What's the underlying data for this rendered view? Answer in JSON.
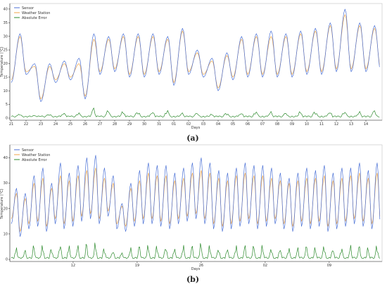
{
  "figure": {
    "caption_a": "(a)",
    "caption_b": "(b)"
  },
  "colors": {
    "sensor": "#4c72d6",
    "weather_station": "#f0a64a",
    "absolute_error": "#2e8b2e",
    "frame": "#bfbfbf"
  },
  "chart_data": [
    {
      "type": "line",
      "caption": "(a)",
      "xlabel": "Days",
      "ylabel": "Temperature (°C)",
      "ylim": [
        0,
        41
      ],
      "yticks": [
        0,
        5,
        10,
        15,
        20,
        25,
        30,
        35,
        40
      ],
      "xticks": [
        "21",
        "22",
        "23",
        "24",
        "25",
        "26",
        "27",
        "28",
        "29",
        "30",
        "31",
        "01",
        "02",
        "03",
        "04",
        "05",
        "06",
        "07",
        "08",
        "09",
        "10",
        "11",
        "12",
        "13",
        "14"
      ],
      "grid": false,
      "legend": "top-left",
      "series": [
        {
          "name": "Sensor",
          "color": "#4c72d6",
          "daily_max": [
            31,
            20,
            20,
            21,
            22,
            31,
            30,
            31,
            31,
            31,
            30,
            33,
            25,
            22,
            24,
            30,
            31,
            32,
            31,
            32,
            33,
            35,
            40,
            35,
            34
          ],
          "daily_min": [
            13,
            16,
            6,
            13,
            14,
            7,
            16,
            17,
            15,
            15,
            16,
            12,
            16,
            15,
            10,
            14,
            15,
            15,
            15,
            15,
            16,
            16,
            17,
            17,
            17
          ]
        },
        {
          "name": "Weather Station",
          "color": "#f0a64a",
          "daily_max": [
            30,
            19,
            19,
            20,
            20,
            29,
            29,
            30,
            30,
            30,
            29,
            32,
            24,
            21,
            23,
            29,
            30,
            30,
            30,
            31,
            32,
            34,
            38,
            34,
            33
          ],
          "daily_min": [
            14,
            17,
            7,
            14,
            15,
            8,
            17,
            18,
            16,
            16,
            17,
            13,
            17,
            16,
            11,
            15,
            16,
            16,
            16,
            16,
            17,
            17,
            18,
            18,
            18
          ]
        },
        {
          "name": "Absolute Error",
          "color": "#2e8b2e",
          "daily_peak": [
            1.5,
            1,
            1.5,
            2,
            2,
            4,
            3,
            2.5,
            2.5,
            2.5,
            3,
            2,
            2,
            1.5,
            2,
            2,
            2.5,
            2.5,
            2,
            2.5,
            2.5,
            2.5,
            2.5,
            2.5,
            3
          ]
        }
      ]
    },
    {
      "type": "line",
      "caption": "(b)",
      "xlabel": "Days",
      "ylabel": "Temperature (°C)",
      "ylim": [
        0,
        44
      ],
      "yticks": [
        0,
        10,
        20,
        30,
        40
      ],
      "xticks": [
        "12",
        "19",
        "26",
        "02",
        "09"
      ],
      "grid": false,
      "legend": "top-left",
      "series": [
        {
          "name": "Sensor",
          "color": "#4c72d6",
          "daily_max": [
            28,
            26,
            33,
            36,
            30,
            38,
            34,
            37,
            40,
            41,
            36,
            33,
            22,
            30,
            35,
            38,
            37,
            37,
            34,
            36,
            38,
            40,
            38,
            35,
            34,
            36,
            38,
            37,
            37,
            36,
            34,
            32,
            34,
            36,
            35,
            37,
            34,
            36,
            36,
            38,
            35,
            38
          ],
          "daily_min": [
            14,
            9,
            12,
            13,
            11,
            14,
            12,
            13,
            15,
            16,
            14,
            17,
            12,
            11,
            13,
            14,
            14,
            13,
            12,
            14,
            15,
            16,
            14,
            12,
            11,
            12,
            13,
            14,
            12,
            13,
            14,
            12,
            11,
            13,
            12,
            13,
            11,
            12,
            13,
            14,
            13,
            12
          ]
        },
        {
          "name": "Weather Station",
          "color": "#f0a64a",
          "daily_max": [
            26,
            24,
            30,
            32,
            28,
            33,
            31,
            33,
            35,
            36,
            32,
            30,
            21,
            28,
            31,
            34,
            33,
            33,
            31,
            32,
            34,
            35,
            34,
            32,
            31,
            33,
            34,
            33,
            33,
            32,
            31,
            30,
            31,
            32,
            32,
            33,
            31,
            32,
            33,
            34,
            32,
            34
          ],
          "daily_min": [
            16,
            11,
            14,
            15,
            13,
            16,
            14,
            15,
            17,
            18,
            16,
            19,
            14,
            13,
            15,
            16,
            16,
            15,
            14,
            16,
            17,
            18,
            16,
            14,
            13,
            14,
            15,
            16,
            14,
            15,
            16,
            14,
            13,
            15,
            14,
            15,
            13,
            14,
            15,
            16,
            15,
            14
          ]
        },
        {
          "name": "Absolute Error",
          "color": "#2e8b2e",
          "daily_peak": [
            5,
            4,
            6,
            6,
            5,
            7,
            6,
            6,
            7,
            7,
            5,
            4,
            3,
            5,
            6,
            6,
            6,
            6,
            5,
            6,
            6,
            7,
            6,
            5,
            5,
            6,
            6,
            6,
            6,
            5,
            5,
            5,
            5,
            6,
            5,
            6,
            5,
            5,
            6,
            6,
            5,
            6
          ]
        }
      ]
    }
  ]
}
